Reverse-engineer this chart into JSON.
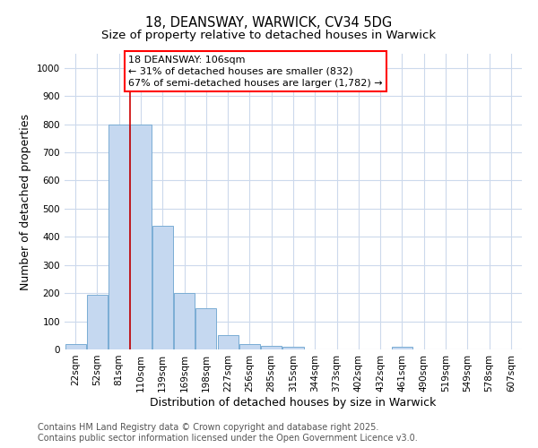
{
  "title": "18, DEANSWAY, WARWICK, CV34 5DG",
  "subtitle": "Size of property relative to detached houses in Warwick",
  "xlabel": "Distribution of detached houses by size in Warwick",
  "ylabel": "Number of detached properties",
  "categories": [
    "22sqm",
    "52sqm",
    "81sqm",
    "110sqm",
    "139sqm",
    "169sqm",
    "198sqm",
    "227sqm",
    "256sqm",
    "285sqm",
    "315sqm",
    "344sqm",
    "373sqm",
    "402sqm",
    "432sqm",
    "461sqm",
    "490sqm",
    "519sqm",
    "549sqm",
    "578sqm",
    "607sqm"
  ],
  "values": [
    20,
    195,
    800,
    800,
    440,
    200,
    145,
    50,
    20,
    13,
    10,
    0,
    0,
    0,
    0,
    8,
    0,
    0,
    0,
    0,
    0
  ],
  "bar_color": "#c5d8f0",
  "bar_edge_color": "#7aadd4",
  "vline_color": "#cc0000",
  "vline_pos": 3.0,
  "ylim": [
    0,
    1050
  ],
  "yticks": [
    0,
    100,
    200,
    300,
    400,
    500,
    600,
    700,
    800,
    900,
    1000
  ],
  "annotation_line1": "18 DEANSWAY: 106sqm",
  "annotation_line2": "← 31% of detached houses are smaller (832)",
  "annotation_line3": "67% of semi-detached houses are larger (1,782) →",
  "background_color": "#ffffff",
  "grid_color": "#ccd9ec",
  "footer_line1": "Contains HM Land Registry data © Crown copyright and database right 2025.",
  "footer_line2": "Contains public sector information licensed under the Open Government Licence v3.0.",
  "title_fontsize": 10.5,
  "subtitle_fontsize": 9.5,
  "axis_label_fontsize": 9,
  "tick_fontsize": 7.5,
  "annotation_fontsize": 8,
  "footer_fontsize": 7
}
